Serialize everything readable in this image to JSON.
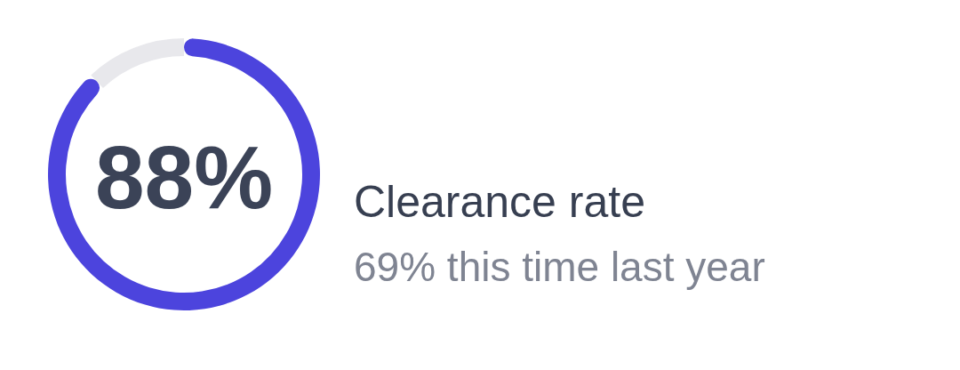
{
  "chart_data": {
    "type": "donut",
    "title": "Clearance rate",
    "subtitle": "69% this time last year",
    "categories": [
      null,
      null
    ],
    "values": [
      88,
      12
    ],
    "colors": [
      "#4c44dd",
      "#e8e8ec"
    ],
    "value_labels": [
      "88%",
      null
    ]
  }
}
